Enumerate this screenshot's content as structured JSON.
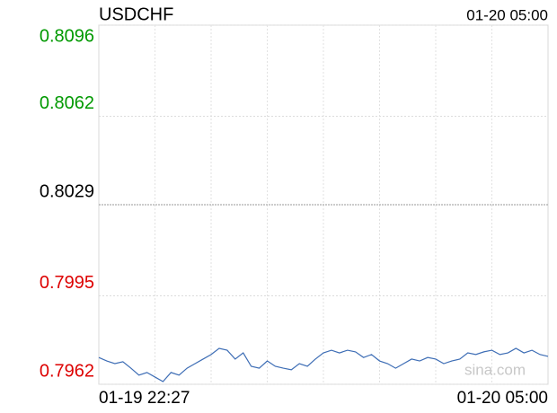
{
  "chart_data": {
    "type": "line",
    "title": "USDCHF",
    "timestamp": "01-20 05:00",
    "x_labels": [
      "01-19 22:27",
      "01-20 05:00"
    ],
    "watermark": "sina.com",
    "ylim": [
      0.7962,
      0.8096
    ],
    "yticks": [
      0.7962,
      0.7995,
      0.8029,
      0.8062,
      0.8096
    ],
    "up_color": "#009900",
    "down_color": "#dd0000",
    "base_color": "#000000",
    "line_color": "#3d6db5",
    "grid": true,
    "values": [
      0.7972,
      0.79707,
      0.79697,
      0.79704,
      0.7968,
      0.79654,
      0.79664,
      0.79647,
      0.7963,
      0.79664,
      0.79654,
      0.7968,
      0.79697,
      0.79714,
      0.79731,
      0.79754,
      0.79747,
      0.79714,
      0.79737,
      0.79687,
      0.7968,
      0.79707,
      0.79687,
      0.7968,
      0.79674,
      0.79697,
      0.79687,
      0.79714,
      0.79737,
      0.79747,
      0.79737,
      0.79747,
      0.79741,
      0.7972,
      0.79731,
      0.79707,
      0.79697,
      0.7968,
      0.79697,
      0.79714,
      0.79707,
      0.7972,
      0.79714,
      0.79697,
      0.79707,
      0.79714,
      0.79737,
      0.79731,
      0.79741,
      0.79747,
      0.79731,
      0.79737,
      0.79754,
      0.79737,
      0.79747,
      0.79731,
      0.79724
    ]
  }
}
